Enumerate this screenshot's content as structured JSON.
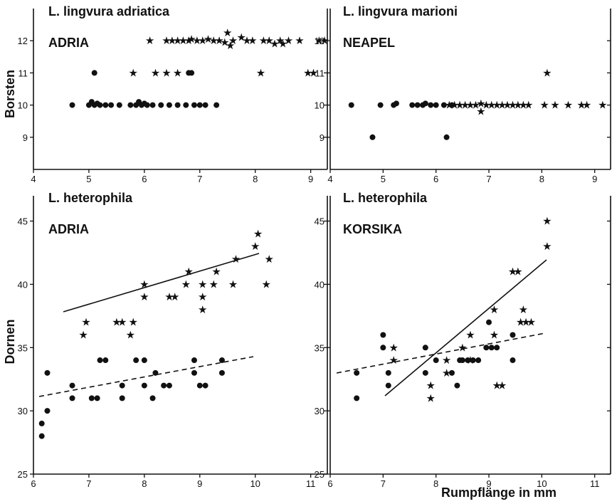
{
  "chart_data": [
    {
      "type": "scatter",
      "title": "L. lingvura adriatica",
      "subtitle": "ADRIA",
      "ylabel": "Borsten",
      "xlabel": "",
      "xlim": [
        4,
        9.3
      ],
      "ylim": [
        8,
        13
      ],
      "xticks": [
        4,
        5,
        6,
        7,
        8,
        9
      ],
      "yticks": [
        9,
        10,
        11,
        12
      ],
      "series": [
        {
          "marker": "dot",
          "points": [
            [
              4.7,
              10
            ],
            [
              5.0,
              10
            ],
            [
              5.05,
              10.1
            ],
            [
              5.1,
              10
            ],
            [
              5.15,
              10.05
            ],
            [
              5.2,
              10
            ],
            [
              5.3,
              10
            ],
            [
              5.4,
              10
            ],
            [
              5.55,
              10
            ],
            [
              5.75,
              10
            ],
            [
              5.85,
              10
            ],
            [
              5.9,
              10.1
            ],
            [
              5.95,
              10
            ],
            [
              6.0,
              10.05
            ],
            [
              6.05,
              10
            ],
            [
              6.15,
              10
            ],
            [
              6.3,
              10
            ],
            [
              6.45,
              10
            ],
            [
              6.6,
              10
            ],
            [
              6.75,
              10
            ],
            [
              6.9,
              10
            ],
            [
              7.0,
              10
            ],
            [
              7.1,
              10
            ],
            [
              7.3,
              10
            ],
            [
              5.1,
              11
            ],
            [
              6.8,
              11
            ],
            [
              6.85,
              11
            ]
          ]
        },
        {
          "marker": "star",
          "points": [
            [
              5.8,
              11
            ],
            [
              6.2,
              11
            ],
            [
              6.4,
              11
            ],
            [
              6.6,
              11
            ],
            [
              8.1,
              11
            ],
            [
              8.95,
              11
            ],
            [
              9.05,
              11
            ],
            [
              6.1,
              12
            ],
            [
              6.4,
              12
            ],
            [
              6.5,
              12
            ],
            [
              6.6,
              12
            ],
            [
              6.7,
              12
            ],
            [
              6.8,
              12
            ],
            [
              6.85,
              12.05
            ],
            [
              6.95,
              12
            ],
            [
              7.05,
              12
            ],
            [
              7.15,
              12.05
            ],
            [
              7.25,
              12
            ],
            [
              7.35,
              12
            ],
            [
              7.45,
              11.95
            ],
            [
              7.5,
              12.25
            ],
            [
              7.55,
              11.85
            ],
            [
              7.6,
              12
            ],
            [
              7.75,
              12.1
            ],
            [
              7.85,
              12
            ],
            [
              7.95,
              12
            ],
            [
              8.15,
              12
            ],
            [
              8.25,
              12
            ],
            [
              8.35,
              11.9
            ],
            [
              8.45,
              12
            ],
            [
              8.5,
              11.9
            ],
            [
              8.6,
              12
            ],
            [
              8.8,
              12
            ],
            [
              9.15,
              12
            ],
            [
              9.25,
              12
            ]
          ]
        }
      ]
    },
    {
      "type": "scatter",
      "title": "L. lingvura marioni",
      "subtitle": "NEAPEL",
      "ylabel": "",
      "xlabel": "",
      "xlim": [
        4,
        9.3
      ],
      "ylim": [
        8,
        13
      ],
      "xticks": [
        4,
        5,
        6,
        7,
        8,
        9
      ],
      "yticks": [
        9,
        10,
        11,
        12
      ],
      "series": [
        {
          "marker": "dot",
          "points": [
            [
              4.4,
              10
            ],
            [
              4.8,
              9
            ],
            [
              4.95,
              10
            ],
            [
              5.2,
              10
            ],
            [
              5.25,
              10.05
            ],
            [
              5.55,
              10
            ],
            [
              5.65,
              10
            ],
            [
              5.75,
              10
            ],
            [
              5.8,
              10.05
            ],
            [
              5.9,
              10
            ],
            [
              6.0,
              10
            ],
            [
              6.15,
              10
            ],
            [
              6.2,
              9
            ],
            [
              6.3,
              10
            ]
          ]
        },
        {
          "marker": "star",
          "points": [
            [
              6.25,
              10
            ],
            [
              6.35,
              10
            ],
            [
              6.45,
              10
            ],
            [
              6.55,
              10
            ],
            [
              6.65,
              10
            ],
            [
              6.75,
              10
            ],
            [
              6.85,
              10.05
            ],
            [
              6.95,
              10
            ],
            [
              7.05,
              10
            ],
            [
              7.15,
              10
            ],
            [
              7.25,
              10
            ],
            [
              7.35,
              10
            ],
            [
              7.45,
              10
            ],
            [
              7.55,
              10
            ],
            [
              7.65,
              10
            ],
            [
              7.75,
              10
            ],
            [
              8.05,
              10
            ],
            [
              8.25,
              10
            ],
            [
              8.5,
              10
            ],
            [
              8.75,
              10
            ],
            [
              8.85,
              10
            ],
            [
              9.15,
              10
            ],
            [
              6.85,
              9.8
            ],
            [
              8.1,
              11
            ]
          ]
        }
      ]
    },
    {
      "type": "scatter",
      "title": "L. heterophila",
      "subtitle": "ADRIA",
      "ylabel": "Dornen",
      "xlabel": "",
      "xlim": [
        6,
        11.3
      ],
      "ylim": [
        25,
        47
      ],
      "xticks": [
        6,
        7,
        8,
        9,
        10,
        11
      ],
      "yticks": [
        25,
        30,
        35,
        40,
        45
      ],
      "series": [
        {
          "marker": "dot",
          "points": [
            [
              6.15,
              28
            ],
            [
              6.15,
              29
            ],
            [
              6.25,
              30
            ],
            [
              6.25,
              33
            ],
            [
              6.7,
              31
            ],
            [
              6.7,
              32
            ],
            [
              7.05,
              31
            ],
            [
              7.15,
              31
            ],
            [
              7.2,
              34
            ],
            [
              7.3,
              34
            ],
            [
              7.6,
              31
            ],
            [
              7.6,
              32
            ],
            [
              7.85,
              34
            ],
            [
              8.0,
              32
            ],
            [
              8.0,
              34
            ],
            [
              8.15,
              31
            ],
            [
              8.2,
              33
            ],
            [
              8.35,
              32
            ],
            [
              8.45,
              32
            ],
            [
              8.9,
              33
            ],
            [
              8.9,
              34
            ],
            [
              9.0,
              32
            ],
            [
              9.1,
              32
            ],
            [
              9.4,
              34
            ],
            [
              9.4,
              33
            ]
          ]
        },
        {
          "marker": "star",
          "points": [
            [
              6.9,
              36
            ],
            [
              6.95,
              37
            ],
            [
              7.5,
              37
            ],
            [
              7.6,
              37
            ],
            [
              7.75,
              36
            ],
            [
              7.8,
              37
            ],
            [
              8.0,
              39
            ],
            [
              8.0,
              40
            ],
            [
              8.45,
              39
            ],
            [
              8.55,
              39
            ],
            [
              8.75,
              40
            ],
            [
              8.8,
              41
            ],
            [
              9.05,
              38
            ],
            [
              9.05,
              39
            ],
            [
              9.05,
              40
            ],
            [
              9.25,
              40
            ],
            [
              9.3,
              41
            ],
            [
              9.6,
              40
            ],
            [
              9.65,
              42
            ],
            [
              10.0,
              43
            ],
            [
              10.05,
              44
            ],
            [
              10.2,
              40
            ],
            [
              10.25,
              42
            ]
          ]
        }
      ]
    },
    {
      "type": "scatter",
      "title": "L. heterophila",
      "subtitle": "KORSIKA",
      "ylabel": "",
      "xlabel": "Rumpflänge in mm",
      "xlim": [
        6,
        11.3
      ],
      "ylim": [
        25,
        47
      ],
      "xticks": [
        6,
        7,
        8,
        9,
        10,
        11
      ],
      "yticks": [
        25,
        30,
        35,
        40,
        45
      ],
      "series": [
        {
          "marker": "dot",
          "points": [
            [
              6.5,
              31
            ],
            [
              6.5,
              33
            ],
            [
              7.0,
              35
            ],
            [
              7.0,
              36
            ],
            [
              7.1,
              32
            ],
            [
              7.1,
              33
            ],
            [
              7.8,
              33
            ],
            [
              7.8,
              35
            ],
            [
              8.0,
              34
            ],
            [
              8.3,
              33
            ],
            [
              8.4,
              32
            ],
            [
              8.45,
              34
            ],
            [
              8.5,
              34
            ],
            [
              8.6,
              34
            ],
            [
              8.7,
              34
            ],
            [
              8.8,
              34
            ],
            [
              8.95,
              35
            ],
            [
              9.05,
              35
            ],
            [
              9.15,
              35
            ],
            [
              9.45,
              34
            ],
            [
              9.45,
              36
            ],
            [
              9.0,
              37
            ]
          ]
        },
        {
          "marker": "star",
          "points": [
            [
              7.2,
              34
            ],
            [
              7.2,
              35
            ],
            [
              7.9,
              31
            ],
            [
              7.9,
              32
            ],
            [
              8.2,
              33
            ],
            [
              8.2,
              34
            ],
            [
              8.5,
              35
            ],
            [
              8.65,
              34
            ],
            [
              8.65,
              36
            ],
            [
              9.1,
              38
            ],
            [
              9.1,
              36
            ],
            [
              9.15,
              32
            ],
            [
              9.25,
              32
            ],
            [
              9.45,
              41
            ],
            [
              9.55,
              41
            ],
            [
              9.6,
              37
            ],
            [
              9.65,
              38
            ],
            [
              9.7,
              37
            ],
            [
              9.8,
              37
            ],
            [
              10.1,
              43
            ],
            [
              10.1,
              45
            ]
          ]
        }
      ]
    }
  ]
}
